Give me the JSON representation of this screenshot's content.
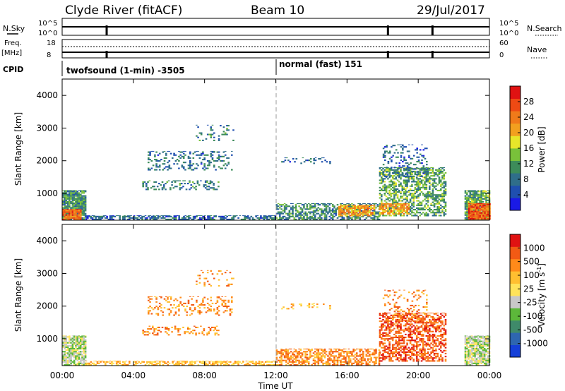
{
  "header": {
    "station": "Clyde River (fitACF)",
    "beam": "Beam 10",
    "date": "29/Jul/2017"
  },
  "status_panels": {
    "nsky_label": "N.Sky",
    "nsearch_label": "N.Search",
    "nsky_ticks": [
      "10^5",
      "10^0"
    ],
    "nsearch_ticks": [
      "10^5",
      "10^0"
    ],
    "freq_label_line1": "Freq.",
    "freq_label_line2": "[MHz]",
    "freq_ticks": [
      "18",
      "8"
    ],
    "nave_label": "Nave",
    "nave_ticks": [
      "60",
      "0"
    ],
    "cpid_label": "CPID",
    "cpid_segments": [
      {
        "name": "twofsound (1-min) -3505",
        "start_hour": 0,
        "end_hour": 12
      },
      {
        "name": "normal (fast) 151",
        "start_hour": 12,
        "end_hour": 24
      }
    ],
    "gap_hours": [
      2.5,
      18.3,
      20.8
    ]
  },
  "colors": {
    "power_scale": [
      "#1a1ae6",
      "#1f4fb0",
      "#2f6e8a",
      "#3d8c5a",
      "#79c13a",
      "#e8e62a",
      "#f2a01f",
      "#f07a1a",
      "#ee4a14",
      "#e01212"
    ],
    "velocity_scale": [
      "#1540d8",
      "#2e66b0",
      "#3f8a6a",
      "#5cb83a",
      "#c8c8c8",
      "#ffe35a",
      "#ffbf30",
      "#ff8a1a",
      "#f25a14",
      "#e01212"
    ]
  },
  "chart_data": [
    {
      "type": "heatmap",
      "title": "",
      "xlabel": "",
      "ylabel": "Slant Range [km]",
      "xlim": [
        0,
        24
      ],
      "ylim": [
        180,
        4500
      ],
      "yticks": [
        1000,
        2000,
        3000,
        4000
      ],
      "ytick_labels": [
        "1000",
        "2000",
        "3000",
        "4000"
      ],
      "colorbar": {
        "label": "Power [dB]",
        "range": [
          0,
          32
        ],
        "tick_values": [
          4,
          8,
          12,
          16,
          20,
          24,
          28
        ],
        "tick_labels": [
          "4",
          "8",
          "12",
          "16",
          "20",
          "24",
          "28"
        ]
      },
      "regions": [
        {
          "t0": 0.0,
          "t1": 1.3,
          "r0": 180,
          "r1": 1100,
          "value": 10,
          "density": 0.85
        },
        {
          "t0": 0.0,
          "t1": 1.0,
          "r0": 180,
          "r1": 520,
          "value": 26,
          "density": 0.9
        },
        {
          "t0": 1.3,
          "t1": 12.0,
          "r0": 180,
          "r1": 330,
          "value": 6,
          "density": 0.6
        },
        {
          "t0": 4.8,
          "t1": 9.5,
          "r0": 1700,
          "r1": 2300,
          "value": 7,
          "density": 0.25
        },
        {
          "t0": 4.5,
          "t1": 8.8,
          "r0": 1100,
          "r1": 1400,
          "value": 8,
          "density": 0.3
        },
        {
          "t0": 7.5,
          "t1": 9.6,
          "r0": 2600,
          "r1": 3100,
          "value": 8,
          "density": 0.15
        },
        {
          "t0": 12.0,
          "t1": 17.8,
          "r0": 180,
          "r1": 700,
          "value": 9,
          "density": 0.55
        },
        {
          "t0": 15.5,
          "t1": 17.5,
          "r0": 300,
          "r1": 650,
          "value": 22,
          "density": 0.8
        },
        {
          "t0": 12.3,
          "t1": 15.0,
          "r0": 1900,
          "r1": 2100,
          "value": 6,
          "density": 0.2
        },
        {
          "t0": 17.8,
          "t1": 21.5,
          "r0": 300,
          "r1": 1800,
          "value": 12,
          "density": 0.55
        },
        {
          "t0": 17.8,
          "t1": 19.5,
          "r0": 350,
          "r1": 700,
          "value": 22,
          "density": 0.7
        },
        {
          "t0": 18.0,
          "t1": 20.5,
          "r0": 1500,
          "r1": 2500,
          "value": 6,
          "density": 0.25
        },
        {
          "t0": 22.6,
          "t1": 24.0,
          "r0": 180,
          "r1": 1100,
          "value": 12,
          "density": 0.85
        },
        {
          "t0": 22.8,
          "t1": 24.0,
          "r0": 200,
          "r1": 700,
          "value": 27,
          "density": 0.95
        }
      ]
    },
    {
      "type": "heatmap",
      "title": "",
      "xlabel": "Time UT",
      "ylabel": "Slant Range [km]",
      "xlim": [
        0,
        24
      ],
      "ylim": [
        180,
        4500
      ],
      "xticks": [
        0,
        4,
        8,
        12,
        16,
        20,
        24
      ],
      "xtick_labels": [
        "00:00",
        "04:00",
        "08:00",
        "12:00",
        "16:00",
        "20:00",
        "00:00"
      ],
      "yticks": [
        1000,
        2000,
        3000,
        4000
      ],
      "ytick_labels": [
        "1000",
        "2000",
        "3000",
        "4000"
      ],
      "colorbar": {
        "label": "Velocity [m s-1]",
        "tick_labels": [
          "1000",
          "500",
          "100",
          "25",
          "-25",
          "-100",
          "-500",
          "-1000"
        ]
      },
      "regions": [
        {
          "t0": 0.0,
          "t1": 1.3,
          "r0": 180,
          "r1": 1100,
          "value": 4,
          "density": 0.8
        },
        {
          "t0": 1.3,
          "t1": 12.0,
          "r0": 180,
          "r1": 330,
          "value": 6,
          "density": 0.55
        },
        {
          "t0": 4.8,
          "t1": 9.5,
          "r0": 1700,
          "r1": 2300,
          "value": 7,
          "density": 0.25
        },
        {
          "t0": 4.5,
          "t1": 8.8,
          "r0": 1100,
          "r1": 1400,
          "value": 7,
          "density": 0.3
        },
        {
          "t0": 7.5,
          "t1": 9.6,
          "r0": 2600,
          "r1": 3100,
          "value": 7,
          "density": 0.15
        },
        {
          "t0": 12.0,
          "t1": 17.8,
          "r0": 180,
          "r1": 700,
          "value": 7,
          "density": 0.55
        },
        {
          "t0": 12.3,
          "t1": 15.0,
          "r0": 1900,
          "r1": 2100,
          "value": 6,
          "density": 0.15
        },
        {
          "t0": 17.8,
          "t1": 21.5,
          "r0": 300,
          "r1": 1800,
          "value": 8,
          "density": 0.55
        },
        {
          "t0": 18.0,
          "t1": 20.5,
          "r0": 1500,
          "r1": 2500,
          "value": 7,
          "density": 0.2
        },
        {
          "t0": 22.6,
          "t1": 24.0,
          "r0": 180,
          "r1": 1100,
          "value": 4,
          "density": 0.85
        }
      ]
    }
  ]
}
